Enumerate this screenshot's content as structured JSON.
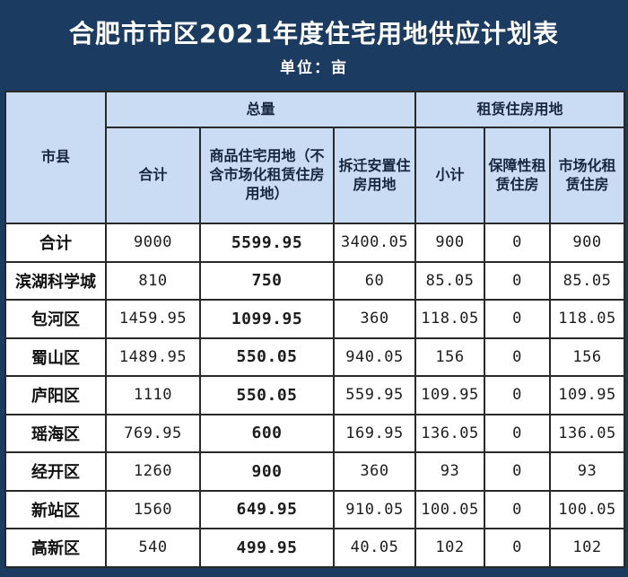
{
  "title": "合肥市市区2021年度住宅用地供应计划表",
  "subtitle": "单位：亩",
  "colors": {
    "title_band_bg": "#1c3b60",
    "header_cell_bg": "#c9dcf3",
    "border": "#292929",
    "title_text": "#ffffff",
    "header_text": "#17273f",
    "cell_bg": "#ffffff"
  },
  "table": {
    "col_headers": {
      "region": "市县",
      "total_group": "总量",
      "rental_group": "租赁住房用地",
      "sub": [
        "合计",
        "商品住宅用地（不含市场化租赁住房用地）",
        "拆迁安置住房用地",
        "小计",
        "保障性租赁住房",
        "市场化租赁住房"
      ]
    },
    "rows": [
      {
        "label": "合计",
        "values": [
          "9000",
          "5599.95",
          "3400.05",
          "900",
          "0",
          "900"
        ]
      },
      {
        "label": "滨湖科学城",
        "values": [
          "810",
          "750",
          "60",
          "85.05",
          "0",
          "85.05"
        ]
      },
      {
        "label": "包河区",
        "values": [
          "1459.95",
          "1099.95",
          "360",
          "118.05",
          "0",
          "118.05"
        ]
      },
      {
        "label": "蜀山区",
        "values": [
          "1489.95",
          "550.05",
          "940.05",
          "156",
          "0",
          "156"
        ]
      },
      {
        "label": "庐阳区",
        "values": [
          "1110",
          "550.05",
          "559.95",
          "109.95",
          "0",
          "109.95"
        ]
      },
      {
        "label": "瑶海区",
        "values": [
          "769.95",
          "600",
          "169.95",
          "136.05",
          "0",
          "136.05"
        ]
      },
      {
        "label": "经开区",
        "values": [
          "1260",
          "900",
          "360",
          "93",
          "0",
          "93"
        ]
      },
      {
        "label": "新站区",
        "values": [
          "1560",
          "649.95",
          "910.05",
          "100.05",
          "0",
          "100.05"
        ]
      },
      {
        "label": "高新区",
        "values": [
          "540",
          "499.95",
          "40.05",
          "102",
          "0",
          "102"
        ]
      }
    ]
  }
}
